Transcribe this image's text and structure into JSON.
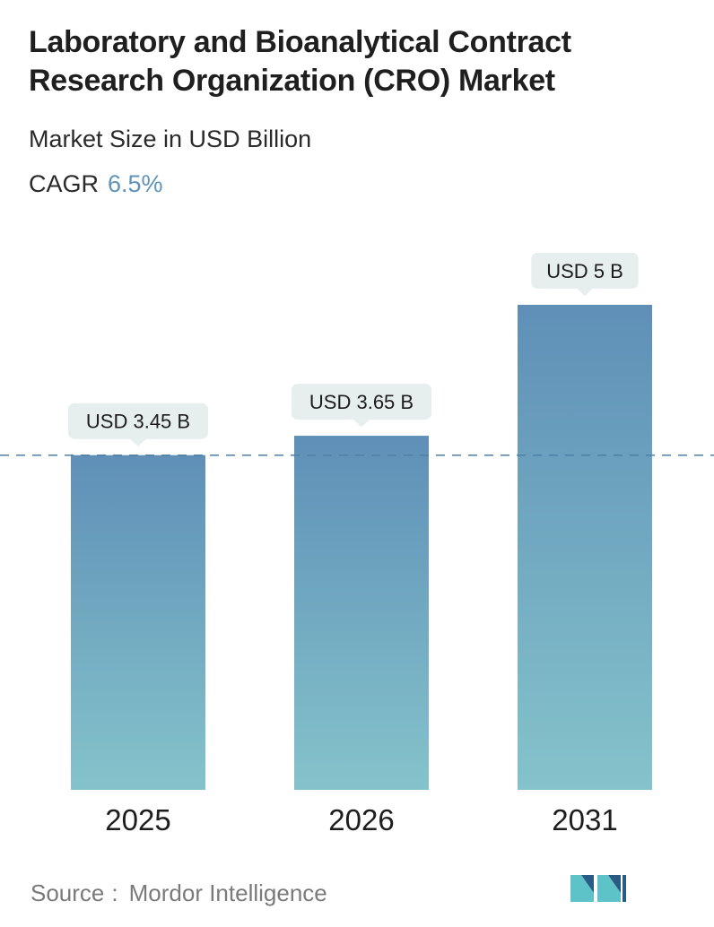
{
  "header": {
    "title": "Laboratory and Bioanalytical Contract Research Organization (CRO) Market",
    "subtitle": "Market Size in USD Billion",
    "cagr_label": "CAGR",
    "cagr_value": "6.5%"
  },
  "chart_data": {
    "type": "bar",
    "categories": [
      "2025",
      "2026",
      "2031"
    ],
    "values": [
      3.45,
      3.65,
      5.0
    ],
    "data_labels": [
      "USD 3.45 B",
      "USD 3.65 B",
      "USD 5 B"
    ],
    "reference_line": 3.45,
    "ylim": [
      0,
      5.0
    ],
    "grid": false,
    "legend": "none",
    "colors": {
      "bar_top": "#5f8fb7",
      "bar_bottom": "#84c3cb",
      "label_bg": "#e6eeee",
      "ref_line": "#4f7fa5"
    }
  },
  "footer": {
    "source_label": "Source",
    "source_sep": ":",
    "source_value": "Mordor Intelligence",
    "logo_icon": "mordor-intelligence-logo-icon",
    "logo_colors": [
      "#2a5b84",
      "#5ec3c8"
    ]
  }
}
